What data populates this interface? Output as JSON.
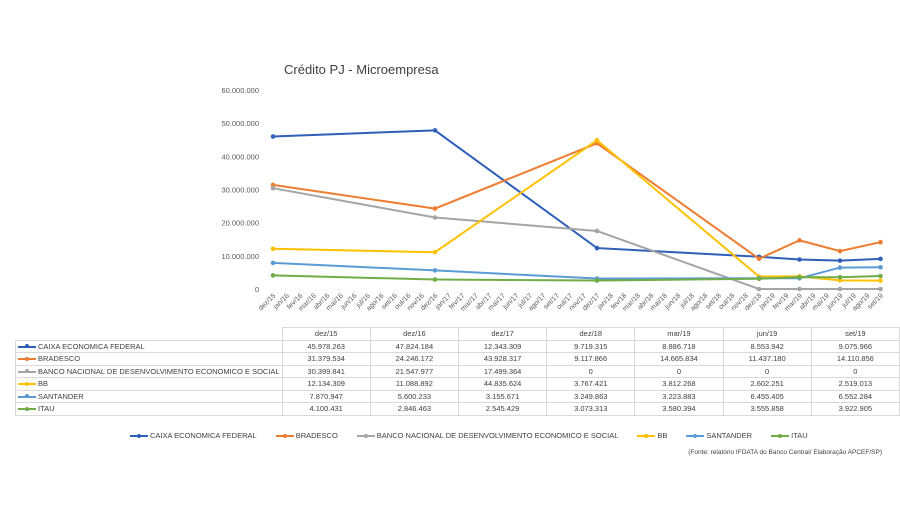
{
  "chart_data": {
    "type": "line",
    "title": "Crédito PJ - Microempresa",
    "xlabel": "",
    "ylabel": "",
    "ylim": [
      0,
      60000000
    ],
    "y_ticks": [
      "0",
      "10.000.000",
      "20.000.000",
      "30.000.000",
      "40.000.000",
      "50.000.000",
      "60.000.000"
    ],
    "y_tick_values": [
      0,
      10000000,
      20000000,
      30000000,
      40000000,
      50000000,
      60000000
    ],
    "grid": false,
    "legend_position": "bottom",
    "x_axis_labels": [
      "dez/15",
      "jan/16",
      "fev/16",
      "mar/16",
      "abr/16",
      "mai/16",
      "jun/16",
      "jul/16",
      "ago/16",
      "set/16",
      "out/16",
      "nov/16",
      "dez/16",
      "jan/17",
      "fev/17",
      "mar/17",
      "abr/17",
      "mai/17",
      "jun/17",
      "jul/17",
      "ago/17",
      "set/17",
      "out/17",
      "nov/17",
      "dez/17",
      "jan/18",
      "fev/18",
      "mar/18",
      "abr/18",
      "mai/18",
      "jun/18",
      "jul/18",
      "ago/18",
      "set/18",
      "out/18",
      "nov/18",
      "dez/18",
      "jan/19",
      "fev/19",
      "mar/19",
      "abr/19",
      "mai/19",
      "jun/19",
      "jul/19",
      "ago/19",
      "set/19"
    ],
    "x": [
      "dez/15",
      "dez/16",
      "dez/17",
      "dez/18",
      "mar/19",
      "jun/19",
      "set/19"
    ],
    "series": [
      {
        "name": "CAIXA ECONOMICA FEDERAL",
        "color": "#2f5fb9",
        "values": [
          45978263,
          47824184,
          12343309,
          9719315,
          8886718,
          8553942,
          9075966
        ],
        "labels": [
          "45.978.263",
          "47.824.184",
          "12.343.309",
          "9.719.315",
          "8.886.718",
          "8.553.942",
          "9.075.966"
        ]
      },
      {
        "name": "BRADESCO",
        "color": "#ed7d31",
        "values": [
          31379534,
          24246172,
          43928317,
          9117866,
          14665834,
          11437180,
          14110856
        ],
        "labels": [
          "31.379.534",
          "24.246.172",
          "43.928.317",
          "9.117.866",
          "14.665.834",
          "11.437.180",
          "14.110.856"
        ]
      },
      {
        "name": "BANCO NACIONAL DE DESENVOLVIMENTO ECONOMICO E SOCIAL",
        "color": "#a5a5a5",
        "values": [
          30399841,
          21547977,
          17499364,
          0,
          0,
          0,
          0
        ],
        "labels": [
          "30.399.841",
          "21.547.977",
          "17.499.364",
          "0",
          "0",
          "0",
          "0"
        ]
      },
      {
        "name": "BB",
        "color": "#ffc000",
        "values": [
          12134309,
          11088892,
          44835624,
          3767421,
          3812268,
          2602251,
          2519013
        ],
        "labels": [
          "12.134.309",
          "11.088.892",
          "44.835.624",
          "3.767.421",
          "3.812.268",
          "2.602.251",
          "2.519.013"
        ]
      },
      {
        "name": "SANTANDER",
        "color": "#5b9bd5",
        "values": [
          7870947,
          5600233,
          3155671,
          3249863,
          3223883,
          6455405,
          6552284
        ],
        "labels": [
          "7.870.947",
          "5.600.233",
          "3.155.671",
          "3.249.863",
          "3.223.883",
          "6.455.405",
          "6.552.284"
        ]
      },
      {
        "name": "ITAU",
        "color": "#70ad47",
        "values": [
          4100431,
          2846463,
          2545429,
          3073313,
          3580394,
          3555858,
          3922905
        ],
        "labels": [
          "4.100.431",
          "2.846.463",
          "2.545.429",
          "3.073.313",
          "3.580.394",
          "3.555.858",
          "3.922.905"
        ]
      }
    ]
  },
  "source": "(Fonte: relatório IFDATA do Banco Central/ Elaboração APCEF/SP)"
}
